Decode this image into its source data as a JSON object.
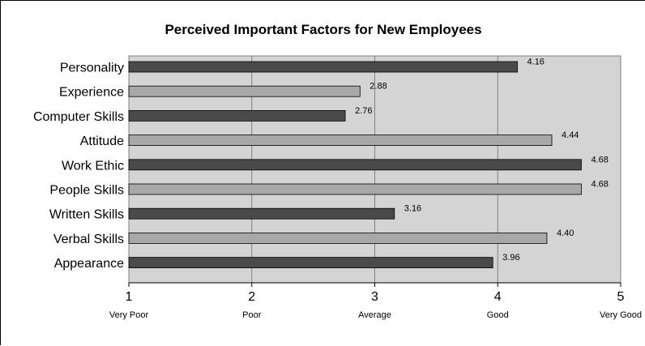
{
  "chart_data": {
    "type": "bar",
    "orientation": "horizontal",
    "title": "Perceived Important Factors for New Employees",
    "categories": [
      "Personality",
      "Experience",
      "Computer Skills",
      "Attitude",
      "Work Ethic",
      "People Skills",
      "Written Skills",
      "Verbal Skills",
      "Appearance"
    ],
    "values": [
      4.16,
      2.88,
      2.76,
      4.44,
      4.68,
      4.68,
      3.16,
      4.4,
      3.96
    ],
    "value_labels": [
      "4.16",
      "2.88",
      "2.76",
      "4.44",
      "4.68",
      "4.68",
      "3.16",
      "4.40",
      "3.96"
    ],
    "bar_colors": [
      "#4a4a4a",
      "#a8a8a8",
      "#4a4a4a",
      "#a8a8a8",
      "#4a4a4a",
      "#a8a8a8",
      "#4a4a4a",
      "#a8a8a8",
      "#4a4a4a"
    ],
    "xlim": [
      1,
      5
    ],
    "x_ticks": [
      {
        "value": 1,
        "label": "1",
        "sublabel": "Very Poor"
      },
      {
        "value": 2,
        "label": "2",
        "sublabel": "Poor"
      },
      {
        "value": 3,
        "label": "3",
        "sublabel": "Average"
      },
      {
        "value": 4,
        "label": "4",
        "sublabel": "Good"
      },
      {
        "value": 5,
        "label": "5",
        "sublabel": "Very Good"
      }
    ],
    "grid": true,
    "plot_background": "#d4d4d4",
    "gridline_color": "#808080"
  }
}
